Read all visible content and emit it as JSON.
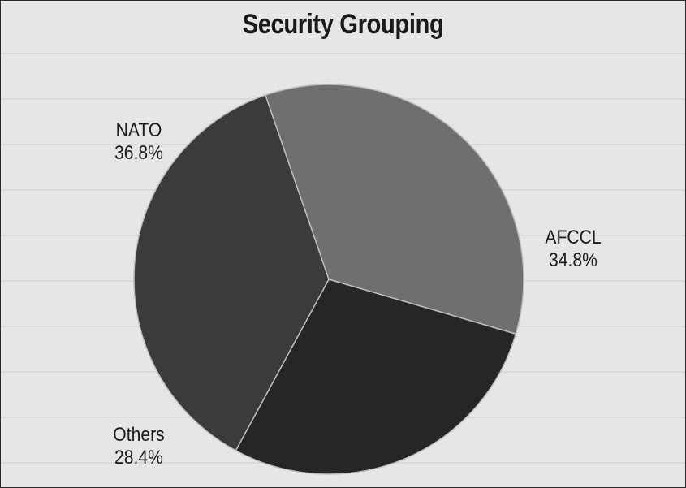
{
  "chart_data": {
    "type": "pie",
    "title": "Security Grouping",
    "slices": [
      {
        "label": "NATO",
        "value": 36.8,
        "percent": "36.8%",
        "color": "#3b3b3b"
      },
      {
        "label": "AFCCL",
        "value": 34.8,
        "percent": "34.8%",
        "color": "#6f6f6f"
      },
      {
        "label": "Others",
        "value": 28.4,
        "percent": "28.4%",
        "color": "#262626"
      }
    ]
  },
  "colors": {
    "background": "#e6e6e6",
    "border": "#2a2a2a",
    "slice_edge": "#bdbdbd"
  }
}
